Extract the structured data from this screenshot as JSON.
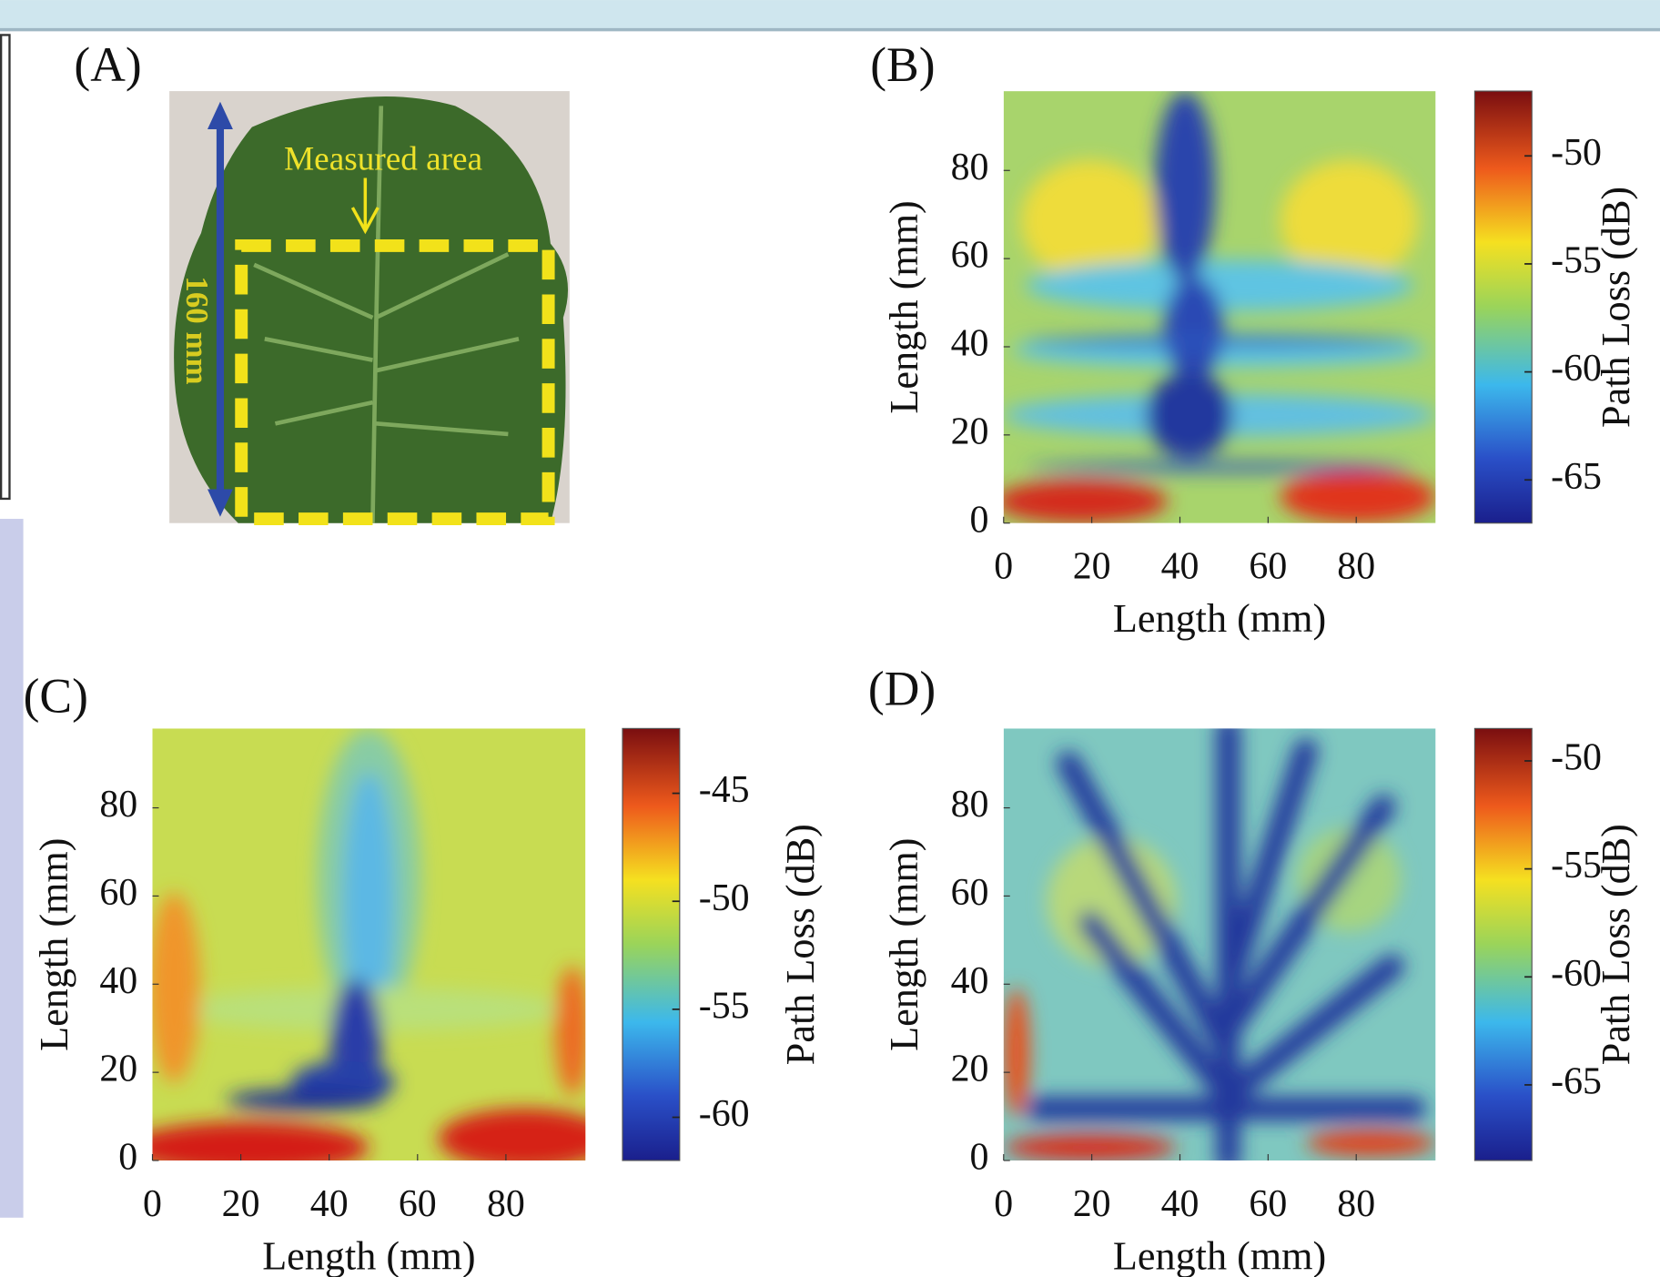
{
  "panel_a": {
    "label": "(A)",
    "annotation": "Measured area",
    "dimension": "160 mm"
  },
  "chart_data": [
    {
      "type": "heatmap",
      "panel_label": "(B)",
      "xlabel": "Length (mm)",
      "ylabel": "Length (mm)",
      "xlim": [
        0,
        98
      ],
      "ylim": [
        0,
        98
      ],
      "xticks": [
        0,
        20,
        40,
        60,
        80
      ],
      "yticks": [
        0,
        20,
        40,
        60,
        80
      ],
      "colorbar": {
        "label": "Path Loss (dB)",
        "lim": [
          -67,
          -47
        ],
        "ticks": [
          -65,
          -60,
          -55,
          -50
        ]
      }
    },
    {
      "type": "heatmap",
      "panel_label": "(C)",
      "xlabel": "Length (mm)",
      "ylabel": "Length (mm)",
      "xlim": [
        0,
        98
      ],
      "ylim": [
        0,
        98
      ],
      "xticks": [
        0,
        20,
        40,
        60,
        80
      ],
      "yticks": [
        0,
        20,
        40,
        60,
        80
      ],
      "colorbar": {
        "label": "Path Loss (dB)",
        "lim": [
          -62,
          -42
        ],
        "ticks": [
          -60,
          -55,
          -50,
          -45
        ]
      }
    },
    {
      "type": "heatmap",
      "panel_label": "(D)",
      "xlabel": "Length (mm)",
      "ylabel": "Length (mm)",
      "xlim": [
        0,
        98
      ],
      "ylim": [
        0,
        98
      ],
      "xticks": [
        0,
        20,
        40,
        60,
        80
      ],
      "yticks": [
        0,
        20,
        40,
        60,
        80
      ],
      "colorbar": {
        "label": "Path Loss (dB)",
        "lim": [
          -68.5,
          -48.5
        ],
        "ticks": [
          -65,
          -60,
          -55,
          -50
        ]
      }
    }
  ]
}
